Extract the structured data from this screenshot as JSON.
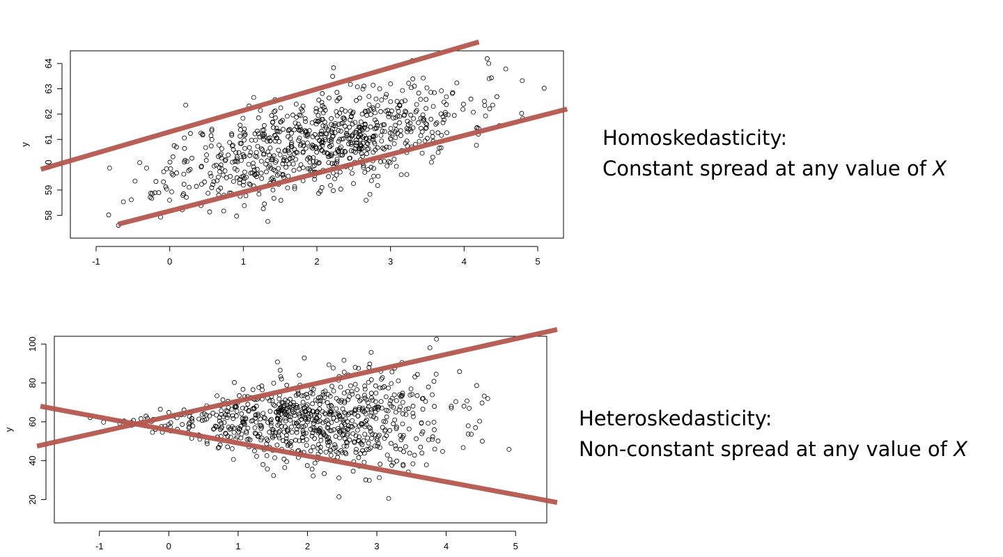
{
  "chart_data": [
    {
      "type": "scatter",
      "title": "",
      "xlabel": "",
      "ylabel": "y",
      "xlim": [
        -1.35,
        5.35
      ],
      "ylim": [
        57.1,
        64.5
      ],
      "x_ticks": [
        -1,
        0,
        1,
        2,
        3,
        4,
        5
      ],
      "y_ticks": [
        58,
        59,
        60,
        61,
        62,
        63,
        64
      ],
      "grid": false,
      "marker_color": "#000000",
      "points": {
        "n": 800,
        "center_x": 2.0,
        "sd_x": 1.0,
        "intercept": 59.6,
        "slope": 0.65,
        "sd_y": 0.9,
        "seed": 11
      },
      "lines": [
        {
          "name": "upper",
          "from": [
            -1.75,
            59.82
          ],
          "to": [
            4.2,
            64.85
          ],
          "color": "#b5574f"
        },
        {
          "name": "lower",
          "from": [
            -0.7,
            57.65
          ],
          "to": [
            5.4,
            62.2
          ],
          "color": "#b5574f"
        }
      ]
    },
    {
      "type": "scatter",
      "title": "",
      "xlabel": "",
      "ylabel": "y",
      "xlim": [
        -1.65,
        5.45
      ],
      "ylim": [
        8,
        104
      ],
      "x_ticks": [
        -1,
        0,
        1,
        2,
        3,
        4,
        5
      ],
      "y_ticks": [
        20,
        40,
        60,
        80,
        100
      ],
      "grid": false,
      "marker_color": "#000000",
      "points": {
        "n": 800,
        "center_x": 2.0,
        "sd_x": 1.0,
        "mean_y": 60,
        "spread_base": 1.2,
        "spread_slope": 3.0,
        "seed": 23
      },
      "lines": [
        {
          "name": "upper",
          "from": [
            -1.9,
            47.5
          ],
          "to": [
            5.6,
            107.5
          ],
          "color": "#b5574f"
        },
        {
          "name": "lower",
          "from": [
            -1.85,
            68.0
          ],
          "to": [
            5.6,
            18.5
          ],
          "color": "#b5574f"
        }
      ]
    }
  ],
  "captions": {
    "homo_title": "Homoskedasticity:",
    "homo_text": "Constant spread at any value of ",
    "homo_var": "X",
    "hetero_title": "Heteroskedasticity:",
    "hetero_text": "Non-constant spread at any value of ",
    "hetero_var": "X"
  }
}
